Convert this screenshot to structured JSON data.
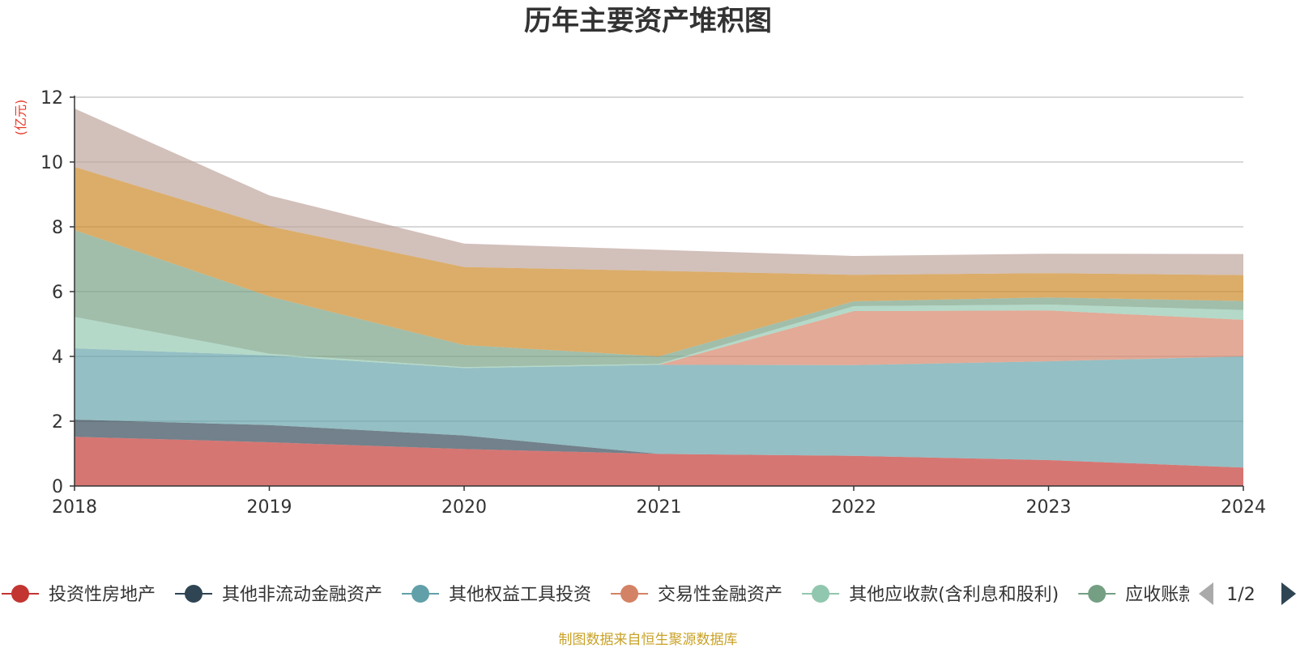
{
  "chart_data": {
    "type": "area",
    "stacked": true,
    "title": "历年主要资产堆积图",
    "unit_label": "(亿元)",
    "x": [
      "2018",
      "2019",
      "2020",
      "2021",
      "2022",
      "2023",
      "2024"
    ],
    "ylim": [
      0,
      12
    ],
    "yticks": [
      0,
      2,
      4,
      6,
      8,
      10,
      12
    ],
    "grid": true,
    "legend_position": "bottom",
    "series": [
      {
        "name": "投资性房地产",
        "color": "#c23531",
        "values": [
          1.52,
          1.35,
          1.14,
          0.99,
          0.93,
          0.8,
          0.57
        ]
      },
      {
        "name": "其他非流动金融资产",
        "color": "#2f4554",
        "values": [
          0.53,
          0.53,
          0.42,
          0.0,
          0.0,
          0.0,
          0.0
        ]
      },
      {
        "name": "其他权益工具投资",
        "color": "#61a0a8",
        "values": [
          2.2,
          2.15,
          2.08,
          2.75,
          2.8,
          3.05,
          3.43
        ]
      },
      {
        "name": "交易性金融资产",
        "color": "#d48265",
        "values": [
          0.0,
          0.0,
          0.0,
          0.0,
          1.67,
          1.57,
          1.13
        ]
      },
      {
        "name": "其他应收款(含利息和股利)",
        "color": "#91c7ae",
        "values": [
          0.97,
          0.05,
          0.03,
          0.03,
          0.15,
          0.18,
          0.3
        ]
      },
      {
        "name": "应收账款",
        "color": "#749f83",
        "values": [
          2.68,
          1.77,
          0.68,
          0.23,
          0.15,
          0.22,
          0.28
        ]
      },
      {
        "name": "",
        "color": "#ca8622",
        "values": [
          1.95,
          2.17,
          2.41,
          2.64,
          0.82,
          0.75,
          0.8
        ]
      },
      {
        "name": "",
        "color": "#bda29a",
        "values": [
          1.8,
          0.95,
          0.72,
          0.65,
          0.58,
          0.6,
          0.65
        ]
      }
    ]
  },
  "legend": {
    "page_indicator": "1/2"
  },
  "footer": {
    "source": "制图数据来自恒生聚源数据库"
  },
  "colors": {
    "unit_label": "#e83828",
    "source": "#c9a227",
    "pager_inactive": "#aaaaaa",
    "pager_active": "#2f4554"
  }
}
